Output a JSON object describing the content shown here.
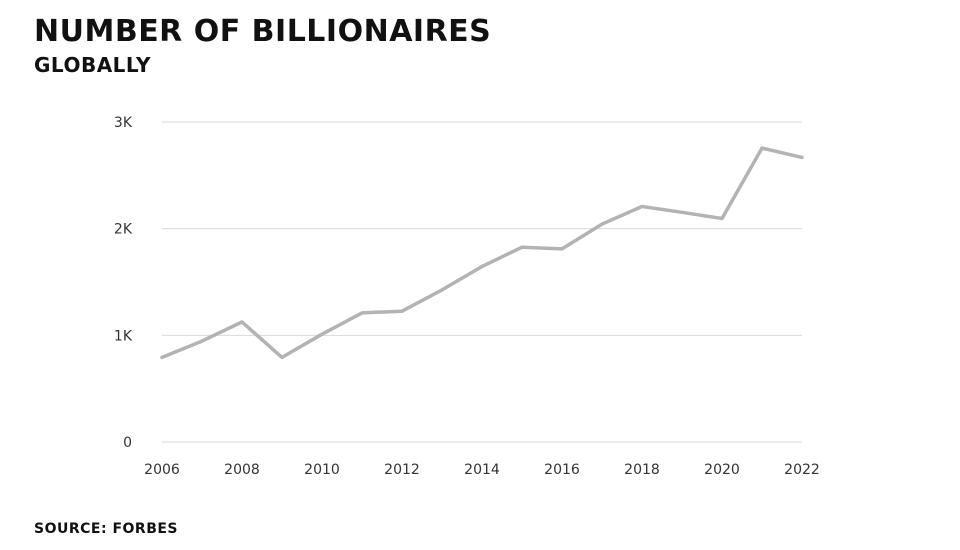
{
  "header": {
    "title": "NUMBER OF BILLIONAIRES",
    "subtitle": "GLOBALLY"
  },
  "footer": {
    "source": "SOURCE: FORBES"
  },
  "chart_data": {
    "type": "line",
    "title": "NUMBER OF BILLIONAIRES",
    "subtitle": "GLOBALLY",
    "xlabel": "",
    "ylabel": "",
    "xlim": [
      2006,
      2022
    ],
    "ylim": [
      0,
      3000
    ],
    "x_ticks": [
      2006,
      2008,
      2010,
      2012,
      2014,
      2016,
      2018,
      2020,
      2022
    ],
    "x_tick_labels": [
      "2006",
      "2008",
      "2010",
      "2012",
      "2014",
      "2016",
      "2018",
      "2020",
      "2022"
    ],
    "y_ticks": [
      0,
      1000,
      2000,
      3000
    ],
    "y_tick_labels": [
      "0",
      "1K",
      "2K",
      "3K"
    ],
    "grid": true,
    "line_color": "#b3b3b3",
    "grid_color": "#d9d9d9",
    "series": [
      {
        "x": [
          2006,
          2007,
          2008,
          2009,
          2010,
          2011,
          2012,
          2013,
          2014,
          2015,
          2016,
          2017,
          2018,
          2019,
          2020,
          2021,
          2022
        ],
        "values": [
          793,
          946,
          1125,
          793,
          1011,
          1210,
          1226,
          1426,
          1645,
          1826,
          1810,
          2043,
          2208,
          2153,
          2095,
          2755,
          2668
        ]
      }
    ]
  }
}
